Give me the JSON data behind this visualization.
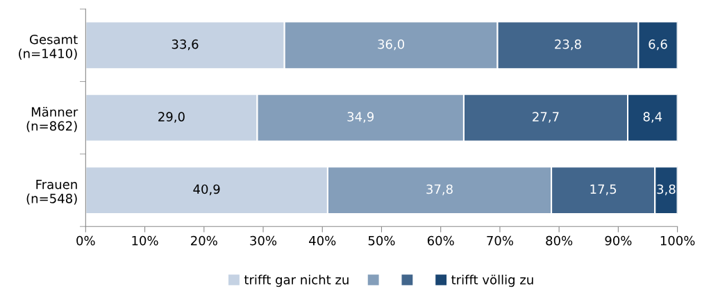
{
  "chart_data": {
    "type": "bar",
    "orientation": "horizontal",
    "stacked": true,
    "categories": [
      "Gesamt\n(n=1410)",
      "Männer\n(n=862)",
      "Frauen\n(n=548)"
    ],
    "series": [
      {
        "name": "trifft gar nicht zu",
        "color": "#c5d2e3",
        "values": [
          33.6,
          29.0,
          40.9
        ],
        "value_labels": [
          "33,6",
          "29,0",
          "40,9"
        ]
      },
      {
        "color": "#849eba",
        "values": [
          36.0,
          34.9,
          37.8
        ],
        "value_labels": [
          "36,0",
          "34,9",
          "37,8"
        ]
      },
      {
        "color": "#42668c",
        "values": [
          23.8,
          27.7,
          17.5
        ],
        "value_labels": [
          "23,8",
          "27,7",
          "17,5"
        ]
      },
      {
        "name": "trifft völlig zu",
        "color": "#1a4672",
        "values": [
          6.6,
          8.4,
          3.8
        ],
        "value_labels": [
          "6,6",
          "8,4",
          "3,8"
        ]
      }
    ],
    "xlim": [
      0,
      100
    ],
    "xticks": [
      {
        "value": 0,
        "label": "0%"
      },
      {
        "value": 10,
        "label": "10%"
      },
      {
        "value": 20,
        "label": "20%"
      },
      {
        "value": 30,
        "label": "30%"
      },
      {
        "value": 40,
        "label": "40%"
      },
      {
        "value": 50,
        "label": "50%"
      },
      {
        "value": 60,
        "label": "60%"
      },
      {
        "value": 70,
        "label": "70%"
      },
      {
        "value": 80,
        "label": "80%"
      },
      {
        "value": 90,
        "label": "90%"
      },
      {
        "value": 100,
        "label": "100%"
      }
    ],
    "grid": false,
    "legend": "bottom"
  }
}
